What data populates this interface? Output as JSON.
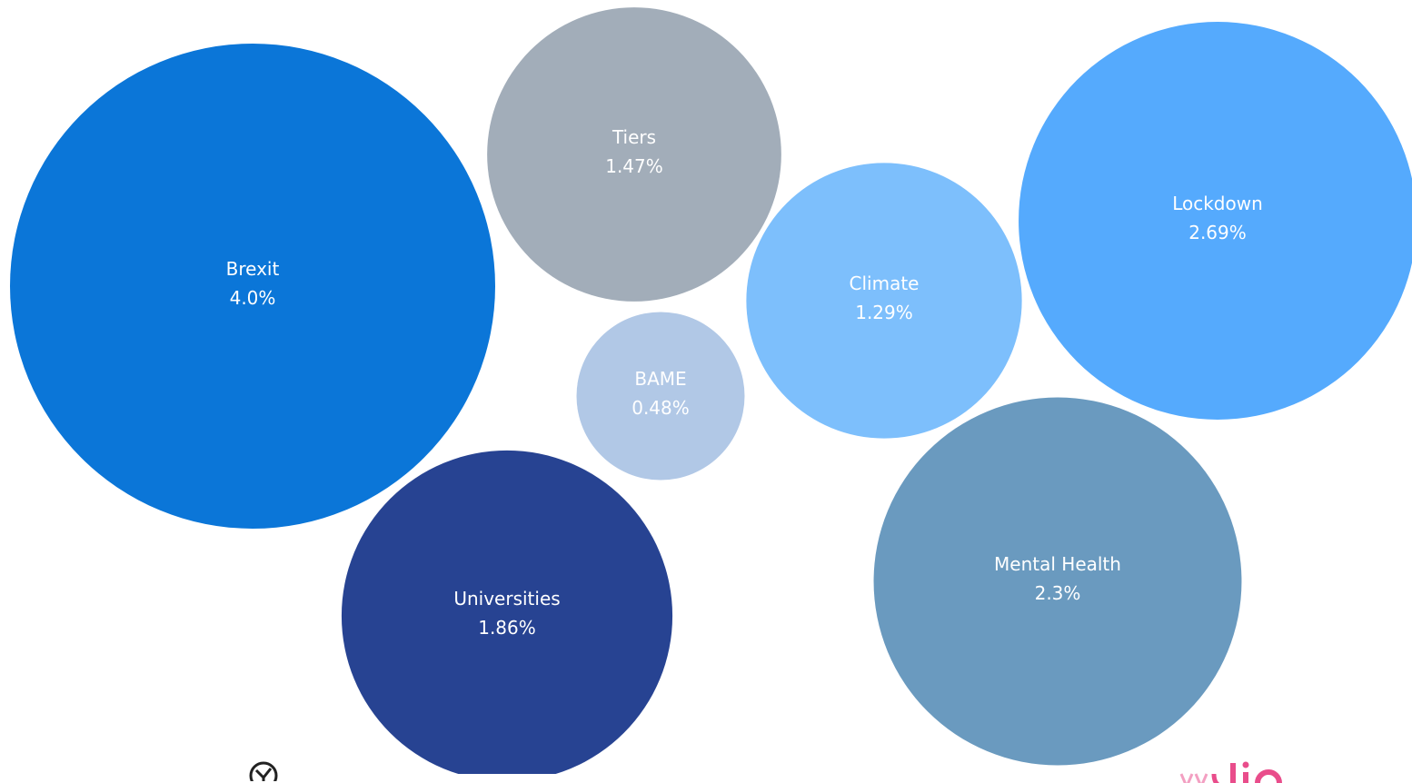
{
  "chart_data": {
    "type": "bubble",
    "values_unit": "%",
    "bubbles": [
      {
        "name": "Brexit",
        "value": 4.0,
        "value_label": "4.0%",
        "color": "#0B76D8"
      },
      {
        "name": "Tiers",
        "value": 1.47,
        "value_label": "1.47%",
        "color": "#A2ADB9"
      },
      {
        "name": "BAME",
        "value": 0.48,
        "value_label": "0.48%",
        "color": "#B1C8E6"
      },
      {
        "name": "Climate",
        "value": 1.29,
        "value_label": "1.29%",
        "color": "#7DBFFC"
      },
      {
        "name": "Lockdown",
        "value": 2.69,
        "value_label": "2.69%",
        "color": "#55AAFD"
      },
      {
        "name": "Universities",
        "value": 1.86,
        "value_label": "1.86%",
        "color": "#274392"
      },
      {
        "name": "Mental Health",
        "value": 2.3,
        "value_label": "2.3%",
        "color": "#6A9ABF"
      }
    ]
  },
  "logos": {
    "left_icon": "clock-logo-icon",
    "right_icon": "brand-wordmark-logo",
    "right_color": "#E94D8B"
  }
}
